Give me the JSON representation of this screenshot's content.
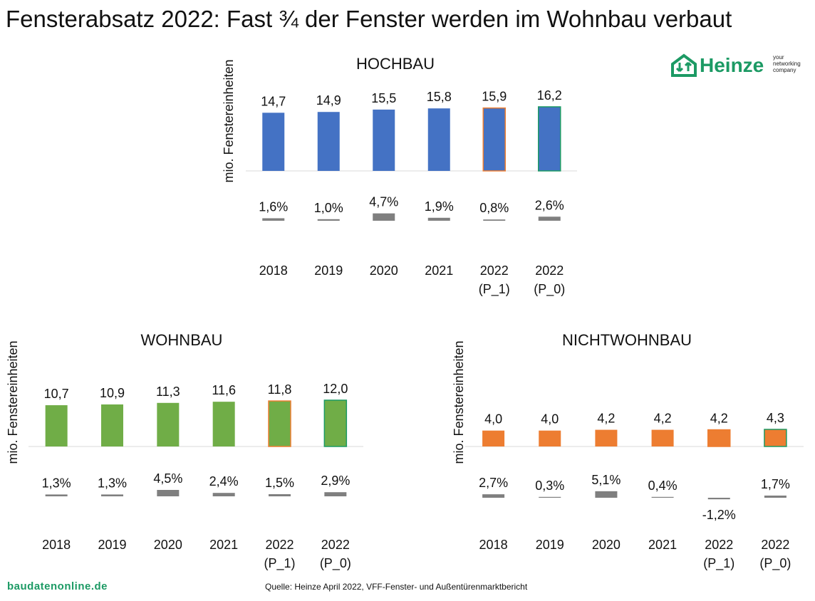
{
  "page": {
    "title": "Fensterabsatz 2022: Fast ¾ der Fenster werden im Wohnbau verbaut",
    "logo": {
      "word": "Heinze",
      "tagline": [
        "your",
        "networking",
        "company"
      ]
    },
    "site": "baudatenonline.de",
    "source": "Quelle: Heinze April 2022, VFF-Fenster- und Außentürenmarktbericht"
  },
  "colors": {
    "hochbau": "#4472c4",
    "wohnbau": "#70ad47",
    "nichtwohnbau": "#ed7d31",
    "growth": "#7f7f7f",
    "outline_p1": "#ed7d31",
    "outline_p0": "#1c9a64",
    "axis": "#d9d9d9",
    "brand": "#1c9a64"
  },
  "chart_data": [
    {
      "type": "bar",
      "title": "HOCHBAU",
      "ylabel": "mio. Fenstereinheiten",
      "categories": [
        [
          "2018"
        ],
        [
          "2019"
        ],
        [
          "2020"
        ],
        [
          "2021"
        ],
        [
          "2022",
          "(P_1)"
        ],
        [
          "2022",
          "(P_0)"
        ]
      ],
      "series": [
        {
          "values": [
            14.7,
            14.9,
            15.5,
            15.8,
            15.9,
            16.2
          ],
          "labels": [
            "14,7",
            "14,9",
            "15,5",
            "15,8",
            "15,9",
            "16,2"
          ]
        },
        {
          "values": [
            1.6,
            1.0,
            4.7,
            1.9,
            0.8,
            2.6
          ],
          "labels": [
            "1,6%",
            "1,0%",
            "4,7%",
            "1,9%",
            "0,8%",
            "2,6%"
          ]
        }
      ],
      "color": "#4472c4"
    },
    {
      "type": "bar",
      "title": "WOHNBAU",
      "ylabel": "mio. Fenstereinheiten",
      "categories": [
        [
          "2018"
        ],
        [
          "2019"
        ],
        [
          "2020"
        ],
        [
          "2021"
        ],
        [
          "2022",
          "(P_1)"
        ],
        [
          "2022",
          "(P_0)"
        ]
      ],
      "series": [
        {
          "values": [
            10.7,
            10.9,
            11.3,
            11.6,
            11.8,
            12.0
          ],
          "labels": [
            "10,7",
            "10,9",
            "11,3",
            "11,6",
            "11,8",
            "12,0"
          ]
        },
        {
          "values": [
            1.3,
            1.3,
            4.5,
            2.4,
            1.5,
            2.9
          ],
          "labels": [
            "1,3%",
            "1,3%",
            "4,5%",
            "2,4%",
            "1,5%",
            "2,9%"
          ]
        }
      ],
      "color": "#70ad47"
    },
    {
      "type": "bar",
      "title": "NICHTWOHNBAU",
      "ylabel": "mio. Fenstereinheiten",
      "categories": [
        [
          "2018"
        ],
        [
          "2019"
        ],
        [
          "2020"
        ],
        [
          "2021"
        ],
        [
          "2022",
          "(P_1)"
        ],
        [
          "2022",
          "(P_0)"
        ]
      ],
      "series": [
        {
          "values": [
            4.0,
            4.0,
            4.2,
            4.2,
            4.2,
            4.3
          ],
          "labels": [
            "4,0",
            "4,0",
            "4,2",
            "4,2",
            "4,2",
            "4,3"
          ]
        },
        {
          "values": [
            2.7,
            0.3,
            5.1,
            0.4,
            -1.2,
            1.7
          ],
          "labels": [
            "2,7%",
            "0,3%",
            "5,1%",
            "0,4%",
            "-1,2%",
            "1,7%"
          ]
        }
      ],
      "color": "#ed7d31"
    }
  ]
}
